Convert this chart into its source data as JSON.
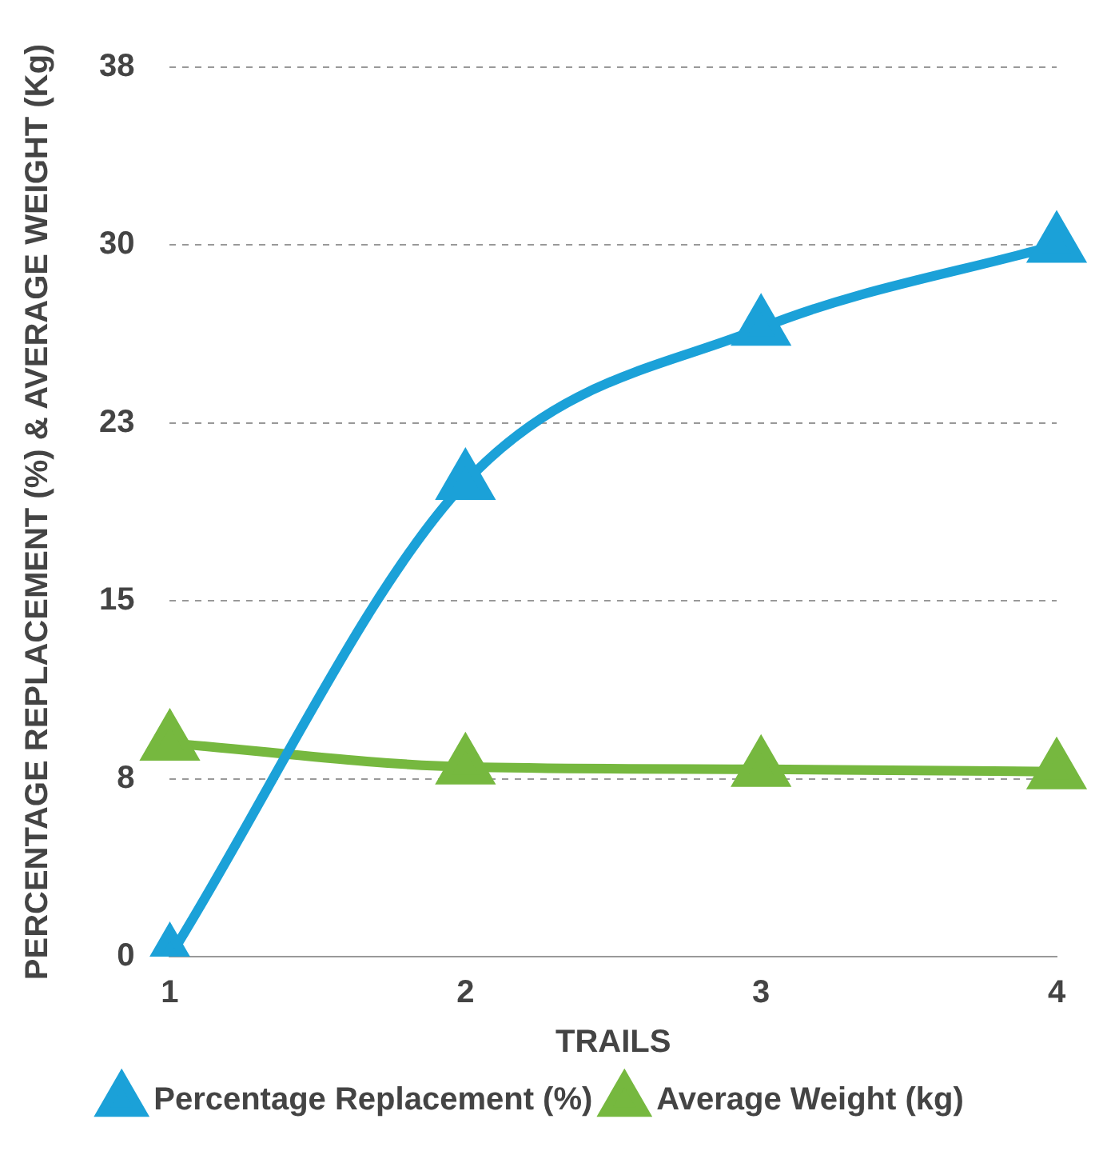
{
  "chart_data": {
    "type": "line",
    "xlabel": "TRAILS",
    "ylabel": "PERCENTAGE REPLACEMENT (%) & AVERAGE WEIGHT (Kg)",
    "categories": [
      "1",
      "2",
      "3",
      "4"
    ],
    "series": [
      {
        "name": "Percentage Replacement (%)",
        "color": "#1ba1d8",
        "values": [
          0,
          20,
          26.5,
          30
        ]
      },
      {
        "name": "Average Weight (kg)",
        "color": "#76b83f",
        "values": [
          9,
          8,
          7.9,
          7.8
        ]
      }
    ],
    "ylim": [
      0,
      37.5
    ],
    "yticks": [
      0,
      {
        "value": 7.5,
        "label": "8"
      },
      15,
      {
        "value": 22.5,
        "label": "23"
      },
      30,
      {
        "value": 37.5,
        "label": "38"
      }
    ],
    "grid": "y",
    "legend": "bottom",
    "marker": "triangle",
    "line_style": "solid"
  }
}
